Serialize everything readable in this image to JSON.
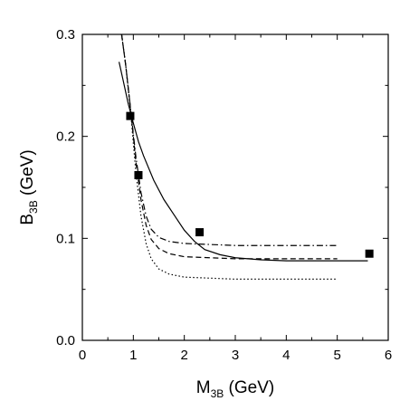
{
  "chart_data": {
    "type": "line",
    "xlabel_main": "M",
    "xlabel_sub": "3B",
    "xlabel_unit": " (GeV)",
    "ylabel_main": "B",
    "ylabel_sub": "3B",
    "ylabel_unit": " (GeV)",
    "xlim": [
      0,
      6
    ],
    "ylim": [
      0.0,
      0.3
    ],
    "x_ticks": [
      0,
      1,
      2,
      3,
      4,
      5,
      6
    ],
    "x_tick_labels": [
      "0",
      "1",
      "2",
      "3",
      "4",
      "5",
      "6"
    ],
    "y_ticks": [
      0.0,
      0.1,
      0.2,
      0.3
    ],
    "y_tick_labels": [
      "0.0",
      "0.1",
      "0.2",
      "0.3"
    ],
    "grid": false,
    "series": [
      {
        "style": "solid",
        "points": [
          [
            0.72,
            0.273
          ],
          [
            0.8,
            0.255
          ],
          [
            0.9,
            0.232
          ],
          [
            1.0,
            0.213
          ],
          [
            1.1,
            0.195
          ],
          [
            1.2,
            0.181
          ],
          [
            1.4,
            0.157
          ],
          [
            1.6,
            0.138
          ],
          [
            1.8,
            0.123
          ],
          [
            2.0,
            0.108
          ],
          [
            2.2,
            0.097
          ],
          [
            2.4,
            0.089
          ],
          [
            2.7,
            0.084
          ],
          [
            3.0,
            0.081
          ],
          [
            3.5,
            0.079
          ],
          [
            4.0,
            0.078
          ],
          [
            5.0,
            0.078
          ],
          [
            5.6,
            0.078
          ]
        ]
      },
      {
        "style": "dash-dot",
        "points": [
          [
            0.77,
            0.3
          ],
          [
            0.85,
            0.27
          ],
          [
            0.95,
            0.225
          ],
          [
            1.05,
            0.18
          ],
          [
            1.15,
            0.145
          ],
          [
            1.25,
            0.122
          ],
          [
            1.35,
            0.109
          ],
          [
            1.5,
            0.101
          ],
          [
            1.7,
            0.097
          ],
          [
            2.0,
            0.095
          ],
          [
            2.5,
            0.094
          ],
          [
            3.0,
            0.093
          ],
          [
            4.0,
            0.093
          ],
          [
            5.0,
            0.093
          ]
        ]
      },
      {
        "style": "dashed",
        "points": [
          [
            0.77,
            0.3
          ],
          [
            0.85,
            0.27
          ],
          [
            0.95,
            0.225
          ],
          [
            1.05,
            0.175
          ],
          [
            1.15,
            0.138
          ],
          [
            1.25,
            0.113
          ],
          [
            1.35,
            0.099
          ],
          [
            1.5,
            0.09
          ],
          [
            1.7,
            0.085
          ],
          [
            2.0,
            0.082
          ],
          [
            2.5,
            0.081
          ],
          [
            3.0,
            0.08
          ],
          [
            4.0,
            0.08
          ],
          [
            5.0,
            0.08
          ]
        ]
      },
      {
        "style": "dotted",
        "points": [
          [
            0.77,
            0.3
          ],
          [
            0.85,
            0.27
          ],
          [
            0.95,
            0.222
          ],
          [
            1.05,
            0.165
          ],
          [
            1.15,
            0.122
          ],
          [
            1.25,
            0.095
          ],
          [
            1.35,
            0.08
          ],
          [
            1.5,
            0.07
          ],
          [
            1.7,
            0.065
          ],
          [
            2.0,
            0.062
          ],
          [
            2.5,
            0.061
          ],
          [
            3.0,
            0.06
          ],
          [
            4.0,
            0.06
          ],
          [
            5.0,
            0.06
          ]
        ]
      }
    ],
    "markers": {
      "shape": "square",
      "points": [
        [
          0.94,
          0.22
        ],
        [
          1.1,
          0.162
        ],
        [
          2.3,
          0.106
        ],
        [
          5.63,
          0.085
        ]
      ]
    }
  }
}
